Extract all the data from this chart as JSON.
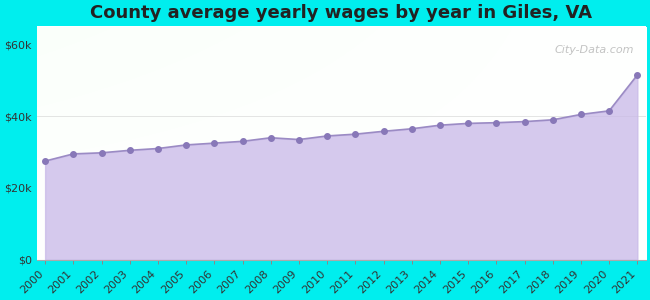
{
  "title": "County average yearly wages by year in Giles, VA",
  "years": [
    2000,
    2001,
    2002,
    2003,
    2004,
    2005,
    2006,
    2007,
    2008,
    2009,
    2010,
    2011,
    2012,
    2013,
    2014,
    2015,
    2016,
    2017,
    2018,
    2019,
    2020,
    2021
  ],
  "wages": [
    27500,
    29500,
    29800,
    30500,
    31000,
    32000,
    32500,
    33000,
    34000,
    33500,
    34500,
    35000,
    35800,
    36500,
    37500,
    38000,
    38200,
    38500,
    39000,
    40500,
    41500,
    51500
  ],
  "fill_color": "#c8b8e8",
  "fill_alpha": 0.75,
  "line_color": "#9b8bc4",
  "marker_color": "#8878b8",
  "marker_size": 4,
  "bg_color": "#00eeee",
  "yticks": [
    0,
    20000,
    40000,
    60000
  ],
  "ytick_labels": [
    "$0",
    "$20k",
    "$40k",
    "$60k"
  ],
  "ymax": 65000,
  "title_fontsize": 13,
  "title_color": "#222222",
  "watermark": "City-Data.com",
  "watermark_fontsize": 8,
  "tick_label_fontsize": 8,
  "ytick_label_fontsize": 8,
  "gradient_colors": [
    "#e8f5e8",
    "#f8fff8",
    "#ffffff"
  ],
  "grid_color": "#cccccc",
  "grid_alpha": 0.6
}
